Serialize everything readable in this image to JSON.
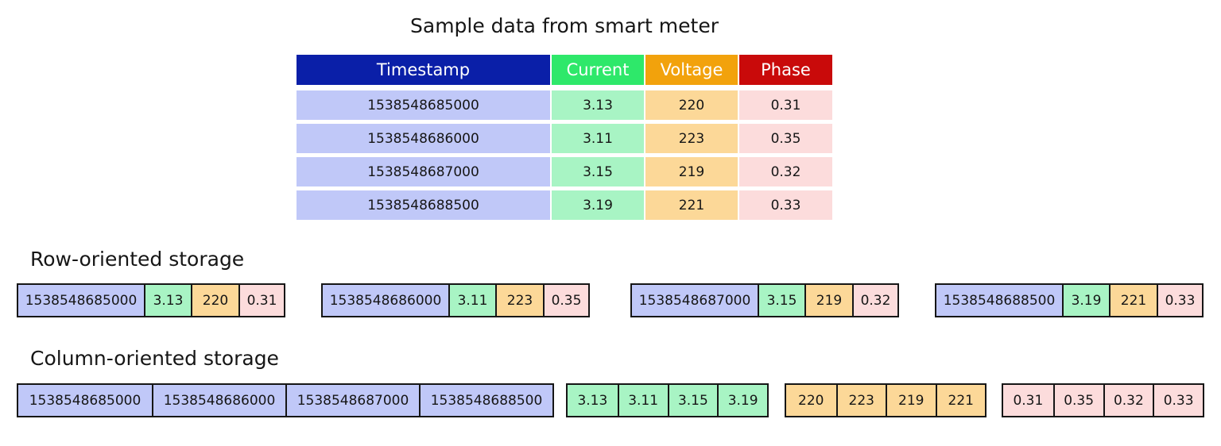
{
  "title": "Sample data from smart meter",
  "table": {
    "header": [
      "Timestamp",
      "Current",
      "Voltage",
      "Phase"
    ],
    "rows": [
      [
        "1538548685000",
        "3.13",
        "220",
        "0.31"
      ],
      [
        "1538548686000",
        "3.11",
        "223",
        "0.35"
      ],
      [
        "1538548687000",
        "3.15",
        "219",
        "0.32"
      ],
      [
        "1538548688500",
        "3.19",
        "221",
        "0.33"
      ]
    ]
  },
  "row_storage": {
    "label": "Row-oriented storage",
    "records": [
      [
        "1538548685000",
        "3.13",
        "220",
        "0.31"
      ],
      [
        "1538548686000",
        "3.11",
        "223",
        "0.35"
      ],
      [
        "1538548687000",
        "3.15",
        "219",
        "0.32"
      ],
      [
        "1538548688500",
        "3.19",
        "221",
        "0.33"
      ]
    ]
  },
  "column_storage": {
    "label": "Column-oriented storage",
    "columns": [
      [
        "1538548685000",
        "1538548686000",
        "1538548687000",
        "1538548688500"
      ],
      [
        "3.13",
        "3.11",
        "3.15",
        "3.19"
      ],
      [
        "220",
        "223",
        "219",
        "221"
      ],
      [
        "0.31",
        "0.35",
        "0.32",
        "0.33"
      ]
    ]
  }
}
